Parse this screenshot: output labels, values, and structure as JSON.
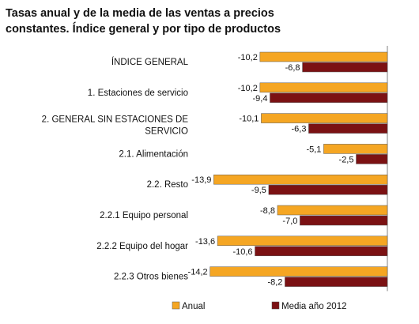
{
  "chart_data": {
    "type": "bar",
    "orientation": "horizontal",
    "title_line1": "Tasas anual y de la media de las ventas a precios",
    "title_line2": "constantes. Índice general y por tipo de productos",
    "categories": [
      [
        "ÍNDICE GENERAL"
      ],
      [
        "1. Estaciones de servicio"
      ],
      [
        "2. GENERAL SIN ESTACIONES DE",
        "SERVICIO"
      ],
      [
        "2.1. Alimentación"
      ],
      [
        "2.2. Resto"
      ],
      [
        "2.2.1 Equipo personal"
      ],
      [
        "2.2.2 Equipo del hogar"
      ],
      [
        "2.2.3 Otros bienes"
      ]
    ],
    "series": [
      {
        "name": "Anual",
        "color": "#f5a623",
        "values": [
          -10.2,
          -10.2,
          -10.1,
          -5.1,
          -13.9,
          -8.8,
          -13.6,
          -14.2
        ],
        "labels": [
          "-10,2",
          "-10,2",
          "-10,1",
          "-5,1",
          "-13,9",
          "-8,8",
          "-13,6",
          "-14,2"
        ]
      },
      {
        "name": "Media año 2012",
        "color": "#7b1113",
        "values": [
          -6.8,
          -9.4,
          -6.3,
          -2.5,
          -9.5,
          -7.0,
          -10.6,
          -8.2
        ],
        "labels": [
          "-6,8",
          "-9,4",
          "-6,3",
          "-2,5",
          "-9,5",
          "-7,0",
          "-10,6",
          "-8,2"
        ]
      }
    ],
    "legend_position": "bottom",
    "grid": false
  }
}
